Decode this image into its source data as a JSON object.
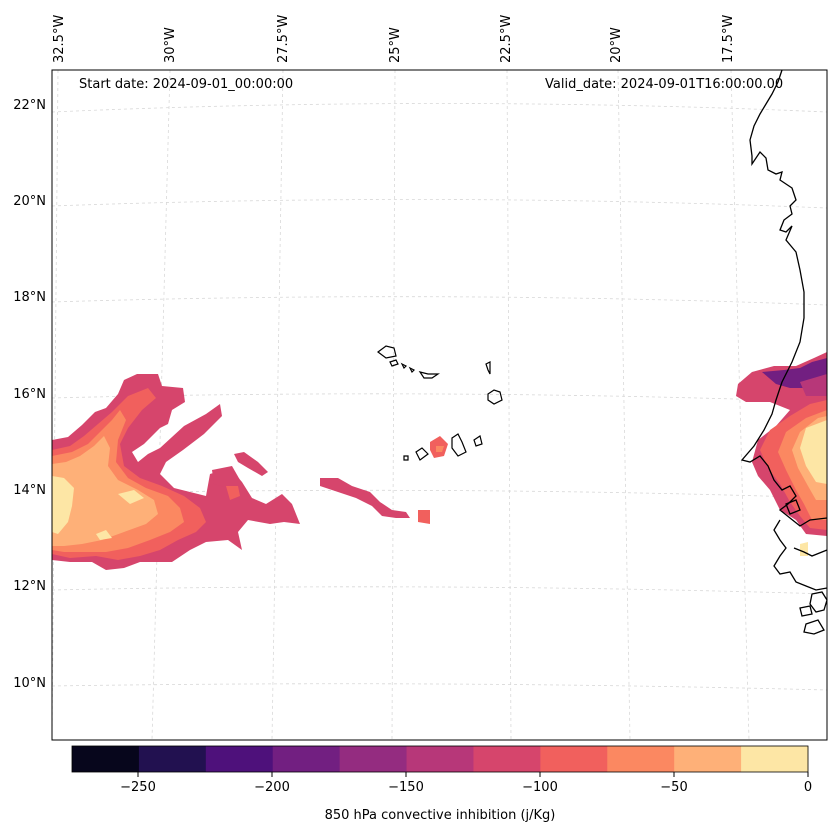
{
  "header": {
    "start_date": "Start date: 2024-09-01_00:00:00",
    "valid_date": "Valid_date: 2024-09-01T16:00:00.00"
  },
  "axes": {
    "lon_labels": [
      "32.5°W",
      "30°W",
      "27.5°W",
      "25°W",
      "22.5°W",
      "20°W",
      "17.5°W"
    ],
    "lat_labels": [
      "22°N",
      "20°N",
      "18°N",
      "16°N",
      "14°N",
      "12°N",
      "10°N"
    ]
  },
  "colorbar": {
    "label": "850 hPa convective inhibition (j/Kg)",
    "ticks": [
      "−250",
      "−200",
      "−150",
      "−100",
      "−50",
      "0"
    ],
    "levels": [
      -275,
      -250,
      -225,
      -200,
      -175,
      -150,
      -125,
      -100,
      -75,
      -50,
      -25,
      0
    ],
    "colors": [
      "#07061c",
      "#221150",
      "#4e117b",
      "#721f81",
      "#942c80",
      "#b73779",
      "#d6456c",
      "#f1605d",
      "#fb8861",
      "#feb078",
      "#fde6a5"
    ]
  },
  "palette": {
    "coastline": "#000000",
    "gridline": "#d8d8d8",
    "frame": "#000000"
  },
  "field_description": {
    "cv_region": "Cape Verde Islands",
    "features": [
      "westward CIN plume near 32°W–24°W, 12.5°N–16°N",
      "coastal Senegal region CIN near 17°W–16°W, 12.5°N–16.5°N"
    ]
  }
}
